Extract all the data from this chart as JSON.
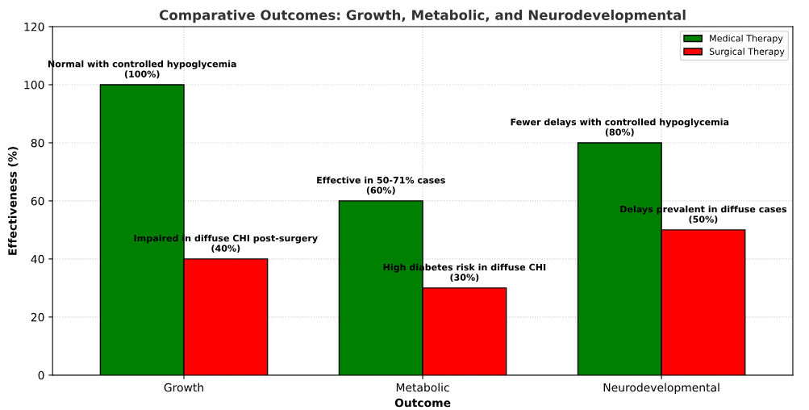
{
  "chart_data": {
    "type": "bar",
    "title": "Comparative Outcomes: Growth, Metabolic, and Neurodevelopmental",
    "xlabel": "Outcome",
    "ylabel": "Effectiveness (%)",
    "categories": [
      "Growth",
      "Metabolic",
      "Neurodevelopmental"
    ],
    "series": [
      {
        "name": "Medical Therapy",
        "color": "#008000",
        "values": [
          100,
          60,
          80
        ],
        "value_labels": [
          "Normal with controlled hypoglycemia\n(100%)",
          "Effective in 50-71% cases\n(60%)",
          "Fewer delays with controlled hypoglycemia\n(80%)"
        ]
      },
      {
        "name": "Surgical Therapy",
        "color": "#ff0000",
        "values": [
          40,
          30,
          50
        ],
        "value_labels": [
          "Impaired in diffuse CHI post-surgery\n(40%)",
          "High diabetes risk in diffuse CHI\n(30%)",
          "Delays prevalent in diffuse cases\n(50%)"
        ]
      }
    ],
    "ylim": [
      0,
      120
    ],
    "yticks": [
      0,
      20,
      40,
      60,
      80,
      100,
      120
    ],
    "grid": true,
    "legend": "top right"
  }
}
